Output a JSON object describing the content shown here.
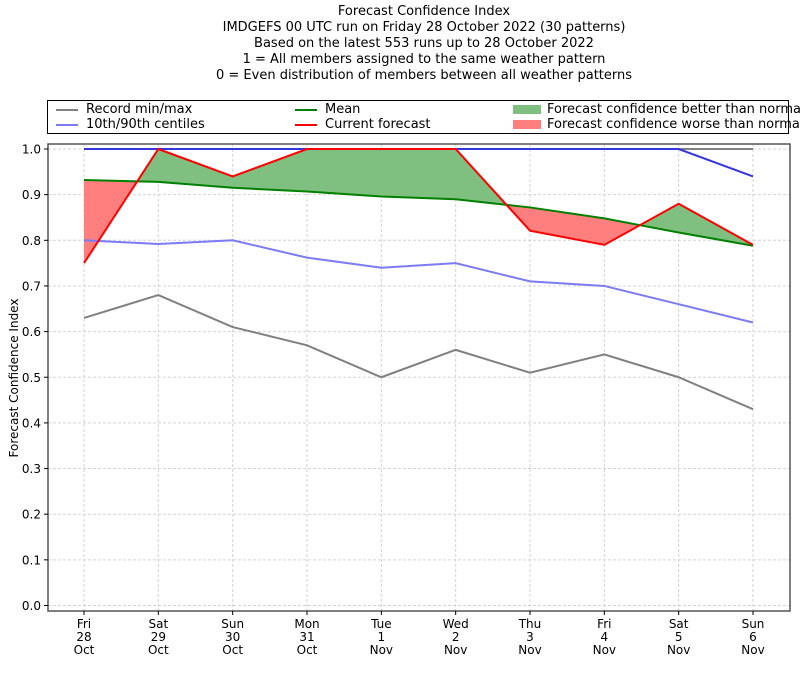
{
  "chart_data": {
    "type": "line",
    "title_lines": [
      "Forecast Confidence Index",
      "IMDGEFS 00 UTC run on Friday 28 October 2022 (30 patterns)",
      "Based on the latest 553 runs up to 28 October 2022",
      "1 = All members assigned to the same weather pattern",
      "0 = Even distribution of members between all weather patterns"
    ],
    "xlabel": "",
    "ylabel": "Forecast Confidence Index",
    "ylim": [
      0.0,
      1.0
    ],
    "yticks": [
      "0.0",
      "0.1",
      "0.2",
      "0.3",
      "0.4",
      "0.5",
      "0.6",
      "0.7",
      "0.8",
      "0.9",
      "1.0"
    ],
    "grid": true,
    "legend_position": "top",
    "categories": [
      [
        "Fri",
        "28",
        "Oct"
      ],
      [
        "Sat",
        "29",
        "Oct"
      ],
      [
        "Sun",
        "30",
        "Oct"
      ],
      [
        "Mon",
        "31",
        "Oct"
      ],
      [
        "Tue",
        "1",
        "Nov"
      ],
      [
        "Wed",
        "2",
        "Nov"
      ],
      [
        "Thu",
        "3",
        "Nov"
      ],
      [
        "Fri",
        "4",
        "Nov"
      ],
      [
        "Sat",
        "5",
        "Nov"
      ],
      [
        "Sun",
        "6",
        "Nov"
      ]
    ],
    "series": [
      {
        "key": "record_max",
        "name": "Record min/max",
        "color": "#808080",
        "values": [
          1.0,
          1.0,
          1.0,
          1.0,
          1.0,
          1.0,
          1.0,
          1.0,
          1.0,
          1.0
        ]
      },
      {
        "key": "record_min",
        "name": "Record min/max",
        "color": "#808080",
        "values": [
          0.63,
          0.68,
          0.61,
          0.57,
          0.5,
          0.56,
          0.51,
          0.55,
          0.5,
          0.43
        ]
      },
      {
        "key": "p90",
        "name": "10th/90th centiles",
        "color": "#7b7bf7",
        "values": [
          1.0,
          1.0,
          1.0,
          1.0,
          1.0,
          1.0,
          1.0,
          1.0,
          1.0,
          0.94
        ]
      },
      {
        "key": "p10",
        "name": "10th/90th centiles",
        "color": "#7b7bf7",
        "values": [
          0.8,
          0.792,
          0.8,
          0.762,
          0.74,
          0.75,
          0.71,
          0.7,
          0.66,
          0.62
        ]
      },
      {
        "key": "mean",
        "name": "Mean",
        "color": "#008000",
        "values": [
          0.932,
          0.928,
          0.915,
          0.907,
          0.896,
          0.89,
          0.872,
          0.848,
          0.817,
          0.788
        ]
      },
      {
        "key": "current",
        "name": "Current forecast",
        "color": "#ff0000",
        "values": [
          0.75,
          1.0,
          0.94,
          1.0,
          1.0,
          1.0,
          0.821,
          0.79,
          0.88,
          0.79
        ]
      }
    ],
    "fills": {
      "better": {
        "name": "Forecast confidence better than normal",
        "color": "#7fbf7f"
      },
      "worse": {
        "name": "Forecast confidence worse than normal",
        "color": "#ff7f7f"
      }
    },
    "legend": [
      {
        "label": "Record min/max",
        "kind": "line",
        "color": "#808080"
      },
      {
        "label": "10th/90th centiles",
        "kind": "line",
        "color": "#7b7bf7"
      },
      {
        "label": "Mean",
        "kind": "line",
        "color": "#008000"
      },
      {
        "label": "Current forecast",
        "kind": "line",
        "color": "#ff0000"
      },
      {
        "label": "Forecast confidence better than normal",
        "kind": "patch",
        "color": "#7fbf7f"
      },
      {
        "label": "Forecast confidence worse than normal",
        "kind": "patch",
        "color": "#ff7f7f"
      }
    ]
  }
}
